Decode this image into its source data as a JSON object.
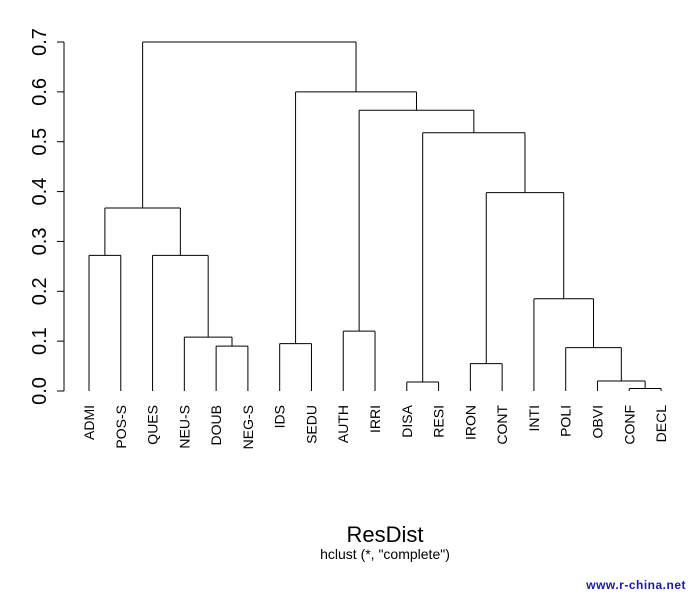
{
  "chart_data": {
    "type": "dendrogram",
    "title": "ResDist",
    "subtitle": "hclust (*, \"complete\")",
    "ylim": [
      0,
      0.7
    ],
    "y_ticks": [
      "0.0",
      "0.1",
      "0.2",
      "0.3",
      "0.4",
      "0.5",
      "0.6",
      "0.7"
    ],
    "leaves": [
      "ADMI",
      "POS-S",
      "QUES",
      "NEU-S",
      "DOUB",
      "NEG-S",
      "IDS",
      "SEDU",
      "AUTH",
      "IRRI",
      "DISA",
      "RESI",
      "IRON",
      "CONT",
      "INTI",
      "POLI",
      "OBVI",
      "CONF",
      "DECL"
    ],
    "merges": [
      {
        "id": "m1",
        "children": [
          "CONF",
          "DECL"
        ],
        "height": 0.005
      },
      {
        "id": "m2",
        "children": [
          "DISA",
          "RESI"
        ],
        "height": 0.018
      },
      {
        "id": "m3",
        "children": [
          "OBVI",
          "m1"
        ],
        "height": 0.02
      },
      {
        "id": "m4",
        "children": [
          "IRON",
          "CONT"
        ],
        "height": 0.055
      },
      {
        "id": "m5",
        "children": [
          "POLI",
          "m3"
        ],
        "height": 0.087
      },
      {
        "id": "m6",
        "children": [
          "DOUB",
          "NEG-S"
        ],
        "height": 0.09
      },
      {
        "id": "m7",
        "children": [
          "IDS",
          "SEDU"
        ],
        "height": 0.095
      },
      {
        "id": "m8",
        "children": [
          "NEU-S",
          "m6"
        ],
        "height": 0.108
      },
      {
        "id": "m9",
        "children": [
          "AUTH",
          "IRRI"
        ],
        "height": 0.12
      },
      {
        "id": "m10",
        "children": [
          "INTI",
          "m5"
        ],
        "height": 0.185
      },
      {
        "id": "m11",
        "children": [
          "QUES",
          "m8"
        ],
        "height": 0.272
      },
      {
        "id": "m12",
        "children": [
          "ADMI",
          "POS-S"
        ],
        "height": 0.272
      },
      {
        "id": "m13",
        "children": [
          "m12",
          "m11"
        ],
        "height": 0.367
      },
      {
        "id": "m14",
        "children": [
          "m4",
          "m10"
        ],
        "height": 0.398
      },
      {
        "id": "m15",
        "children": [
          "m2",
          "m14"
        ],
        "height": 0.518
      },
      {
        "id": "m16",
        "children": [
          "m9",
          "m15"
        ],
        "height": 0.563
      },
      {
        "id": "m17",
        "children": [
          "m7",
          "m16"
        ],
        "height": 0.6
      },
      {
        "id": "m18",
        "children": [
          "m13",
          "m17"
        ],
        "height": 0.7
      }
    ],
    "leaf_drop": 0.0,
    "line_color": "#000000"
  },
  "watermark": "www.r-china.net"
}
